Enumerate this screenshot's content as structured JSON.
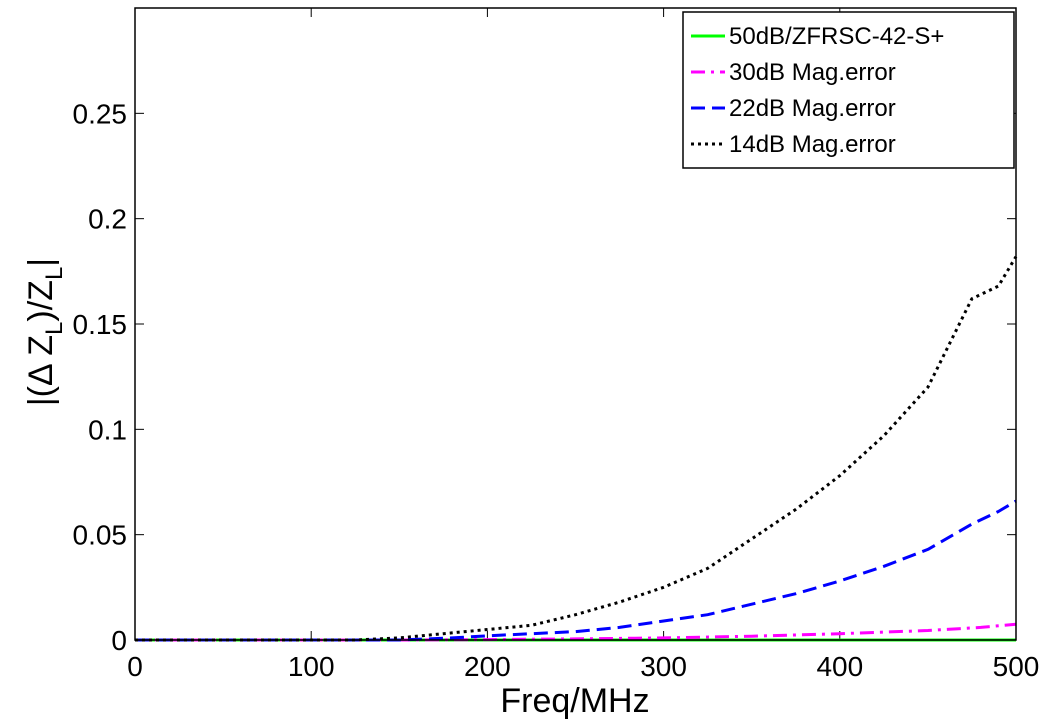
{
  "chart_data": {
    "type": "line",
    "xlabel": "Freq/MHz",
    "ylabel": "|(Δ Z_L)/Z_L|",
    "ylabel_parts": {
      "open": "|(Δ Z",
      "sub1": "L",
      "mid": ")/Z",
      "sub2": "L",
      "close": "|"
    },
    "xlim": [
      0,
      500
    ],
    "ylim": [
      0,
      0.3
    ],
    "x_ticks": [
      0,
      100,
      200,
      300,
      400,
      500
    ],
    "x_tick_labels": [
      "0",
      "100",
      "200",
      "300",
      "400",
      "500"
    ],
    "y_ticks": [
      0,
      0.05,
      0.1,
      0.15,
      0.2,
      0.25
    ],
    "y_tick_labels": [
      "0",
      "0.05",
      "0.1",
      "0.15",
      "0.2",
      "0.25"
    ],
    "grid": false,
    "legend_position": "top-right",
    "series": [
      {
        "name": "50dB/ZFRSC-42-S+",
        "color": "#00ff00",
        "dash": "solid",
        "x": [
          0,
          500
        ],
        "y": [
          0,
          0
        ]
      },
      {
        "name": "30dB Mag.error",
        "color": "#ff00ff",
        "dash": "dashdot",
        "x": [
          0,
          150,
          200,
          250,
          300,
          350,
          400,
          450,
          480,
          500
        ],
        "y": [
          0,
          0,
          0.0002,
          0.0005,
          0.001,
          0.0018,
          0.003,
          0.0045,
          0.006,
          0.0075
        ]
      },
      {
        "name": "22dB Mag.error",
        "color": "#0000ff",
        "dash": "dashed",
        "x": [
          0,
          150,
          180,
          200,
          225,
          250,
          275,
          300,
          325,
          350,
          375,
          400,
          425,
          450,
          475,
          490,
          500
        ],
        "y": [
          0,
          0,
          0.001,
          0.002,
          0.003,
          0.004,
          0.006,
          0.009,
          0.012,
          0.017,
          0.022,
          0.028,
          0.035,
          0.043,
          0.055,
          0.061,
          0.066
        ]
      },
      {
        "name": "14dB Mag.error",
        "color": "#000000",
        "dash": "dotted",
        "x": [
          0,
          125,
          150,
          175,
          200,
          225,
          250,
          275,
          300,
          325,
          350,
          375,
          400,
          425,
          450,
          475,
          490,
          500
        ],
        "y": [
          0,
          0,
          0.001,
          0.003,
          0.005,
          0.007,
          0.012,
          0.018,
          0.025,
          0.034,
          0.048,
          0.062,
          0.078,
          0.097,
          0.12,
          0.162,
          0.168,
          0.182
        ]
      }
    ]
  }
}
